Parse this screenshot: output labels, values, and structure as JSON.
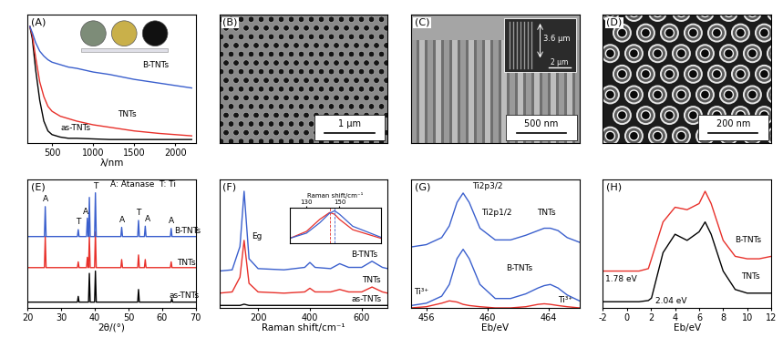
{
  "chart_data": [
    {
      "type": "line",
      "panel": "(A)",
      "xlabel": "λ/nm",
      "xlim": [
        200,
        2250
      ],
      "xticks": [
        500,
        1000,
        1500,
        2000
      ],
      "ylim": [
        0,
        1.05
      ],
      "tick_labels": "x",
      "x": [
        230,
        260,
        300,
        350,
        400,
        450,
        500,
        600,
        700,
        800,
        1000,
        1200,
        1500,
        1800,
        2000,
        2200
      ],
      "series": [
        {
          "color": "#000000",
          "values": [
            0.95,
            0.85,
            0.6,
            0.35,
            0.18,
            0.1,
            0.07,
            0.05,
            0.04,
            0.04,
            0.035,
            0.03,
            0.03,
            0.03,
            0.03,
            0.03
          ]
        },
        {
          "color": "#e8302a",
          "values": [
            0.95,
            0.88,
            0.7,
            0.5,
            0.38,
            0.3,
            0.26,
            0.22,
            0.2,
            0.18,
            0.15,
            0.13,
            0.1,
            0.08,
            0.07,
            0.06
          ]
        },
        {
          "color": "#3a5fcd",
          "values": [
            0.95,
            0.9,
            0.82,
            0.75,
            0.71,
            0.68,
            0.66,
            0.64,
            0.62,
            0.61,
            0.58,
            0.56,
            0.52,
            0.49,
            0.47,
            0.45
          ]
        }
      ],
      "annotations": [
        {
          "text": "as-TNTs",
          "x": 600,
          "y": 0.09
        },
        {
          "text": "TNTs",
          "x": 1300,
          "y": 0.2
        },
        {
          "text": "B-TNTs",
          "x": 1600,
          "y": 0.6
        }
      ]
    },
    {
      "type": "image",
      "panel": "(B)",
      "scale_bar": "1 μm"
    },
    {
      "type": "image",
      "panel": "(C)",
      "scale_bar": "500 nm",
      "inset_annotation": "3.6 μm",
      "inset_scale_bar": "2 μm"
    },
    {
      "type": "image",
      "panel": "(D)",
      "scale_bar": "200 nm"
    },
    {
      "type": "line",
      "panel": "(E)",
      "xlabel": "2θ/(°)",
      "xlim": [
        20,
        70
      ],
      "xticks": [
        20,
        30,
        40,
        50,
        60,
        70
      ],
      "ylim": [
        0,
        1.12
      ],
      "tick_labels": "x",
      "series": [
        {
          "color": "#000000",
          "baseline": 0.05,
          "peak_x": [
            35.1,
            38.4,
            40.2,
            53.0,
            62.9
          ],
          "peak_values": [
            0.1,
            0.3,
            0.32,
            0.16,
            0.08
          ]
        },
        {
          "color": "#e8302a",
          "baseline": 0.35,
          "peak_x": [
            25.3,
            35.1,
            37.8,
            38.4,
            40.2,
            48.0,
            53.0,
            55.0,
            62.7
          ],
          "peak_values": [
            0.62,
            0.4,
            0.44,
            0.62,
            0.66,
            0.42,
            0.46,
            0.42,
            0.4
          ]
        },
        {
          "color": "#3a5fcd",
          "baseline": 0.62,
          "peak_x": [
            25.3,
            35.1,
            37.8,
            38.4,
            40.2,
            48.0,
            53.0,
            55.0,
            62.7
          ],
          "peak_values": [
            0.88,
            0.68,
            0.78,
            0.96,
            1.0,
            0.7,
            0.76,
            0.71,
            0.69
          ]
        }
      ],
      "annotations": [
        {
          "text": "A: Atanase  T: Ti",
          "x": 44.5,
          "y": 1.04
        },
        {
          "text": "A",
          "x": 24.5,
          "y": 0.91
        },
        {
          "text": "T",
          "x": 34.3,
          "y": 0.71
        },
        {
          "text": "A",
          "x": 36.5,
          "y": 0.8
        },
        {
          "text": "T",
          "x": 39.6,
          "y": 1.02
        },
        {
          "text": "A",
          "x": 47.2,
          "y": 0.73
        },
        {
          "text": "T",
          "x": 52.2,
          "y": 0.79
        },
        {
          "text": "A",
          "x": 55.0,
          "y": 0.74
        },
        {
          "text": "A",
          "x": 61.9,
          "y": 0.72
        },
        {
          "text": "B-TNTs",
          "x": 63.5,
          "y": 0.63
        },
        {
          "text": "TNTs",
          "x": 64.5,
          "y": 0.36
        },
        {
          "text": "as-TNTs",
          "x": 62.0,
          "y": 0.07
        }
      ]
    },
    {
      "type": "line",
      "panel": "(F)",
      "xlabel": "Raman shift/cm⁻¹",
      "xlim": [
        50,
        700
      ],
      "xticks": [
        200,
        400,
        600
      ],
      "ylim": [
        0,
        1.05
      ],
      "tick_labels": "x",
      "x": [
        50,
        100,
        130,
        146,
        165,
        200,
        300,
        380,
        400,
        420,
        480,
        515,
        550,
        600,
        640,
        680,
        700
      ],
      "series": [
        {
          "color": "#000000",
          "values": [
            0.02,
            0.02,
            0.02,
            0.03,
            0.02,
            0.02,
            0.02,
            0.02,
            0.02,
            0.02,
            0.02,
            0.02,
            0.02,
            0.02,
            0.02,
            0.02,
            0.02
          ]
        },
        {
          "color": "#e8302a",
          "values": [
            0.12,
            0.13,
            0.25,
            0.55,
            0.2,
            0.13,
            0.12,
            0.13,
            0.16,
            0.13,
            0.13,
            0.15,
            0.13,
            0.13,
            0.17,
            0.13,
            0.12
          ]
        },
        {
          "color": "#3a5fcd",
          "values": [
            0.3,
            0.31,
            0.5,
            0.95,
            0.4,
            0.32,
            0.31,
            0.33,
            0.37,
            0.33,
            0.32,
            0.36,
            0.33,
            0.33,
            0.38,
            0.33,
            0.32
          ]
        }
      ],
      "annotations": [
        {
          "text": "Eg",
          "x": 175,
          "y": 0.55
        },
        {
          "text": "B-TNTs",
          "x": 560,
          "y": 0.4
        },
        {
          "text": "TNTs",
          "x": 600,
          "y": 0.19
        },
        {
          "text": "as-TNTs",
          "x": 560,
          "y": 0.04
        }
      ],
      "inset": {
        "xlabel": "Raman shift/cm⁻¹",
        "xlim": [
          120,
          175
        ],
        "xticks": [
          130,
          150
        ],
        "ylim": [
          0,
          1.05
        ],
        "x": [
          120,
          130,
          138,
          144,
          147,
          150,
          158,
          175
        ],
        "series": [
          {
            "color": "#e8302a",
            "values": [
              0.15,
              0.35,
              0.7,
              0.9,
              0.85,
              0.7,
              0.4,
              0.15
            ]
          },
          {
            "color": "#3a5fcd",
            "values": [
              0.15,
              0.3,
              0.6,
              0.88,
              0.95,
              0.85,
              0.5,
              0.18
            ]
          }
        ]
      }
    },
    {
      "type": "line",
      "panel": "(G)",
      "xlabel": "Eb/eV",
      "xlim": [
        455,
        466
      ],
      "xticks": [
        456,
        460,
        464
      ],
      "ylim": [
        0,
        1.1
      ],
      "tick_labels": "x",
      "x": [
        455,
        456,
        457,
        457.5,
        458,
        458.4,
        458.8,
        459.5,
        460.5,
        461.5,
        462.5,
        463.3,
        463.7,
        464.1,
        464.6,
        465.2,
        466
      ],
      "series": [
        {
          "color": "#3a5fcd",
          "values": [
            0.52,
            0.54,
            0.6,
            0.7,
            0.9,
            0.98,
            0.9,
            0.68,
            0.58,
            0.58,
            0.62,
            0.66,
            0.68,
            0.68,
            0.66,
            0.6,
            0.56
          ]
        },
        {
          "color": "#3a5fcd",
          "values": [
            0.02,
            0.04,
            0.1,
            0.2,
            0.42,
            0.5,
            0.42,
            0.2,
            0.08,
            0.08,
            0.12,
            0.17,
            0.19,
            0.2,
            0.17,
            0.11,
            0.06
          ]
        },
        {
          "color": "#e8302a",
          "values": [
            0.0,
            0.01,
            0.04,
            0.06,
            0.05,
            0.03,
            0.02,
            0.01,
            0.0,
            0.0,
            0.01,
            0.03,
            0.035,
            0.03,
            0.02,
            0.01,
            0.0
          ]
        }
      ],
      "annotations": [
        {
          "text": "Ti2p3/2",
          "x": 459.0,
          "y": 1.0
        },
        {
          "text": "Ti2p1/2",
          "x": 459.6,
          "y": 0.78
        },
        {
          "text": "TNTs",
          "x": 463.2,
          "y": 0.78
        },
        {
          "text": "B-TNTs",
          "x": 461.2,
          "y": 0.3
        },
        {
          "text": "Ti³⁺",
          "x": 455.2,
          "y": 0.1
        },
        {
          "text": "Ti³⁺",
          "x": 464.6,
          "y": 0.03
        }
      ]
    },
    {
      "type": "line",
      "panel": "(H)",
      "xlabel": "Eb/eV",
      "xlim": [
        -2,
        12
      ],
      "xticks": [
        -2,
        0,
        2,
        4,
        6,
        8,
        10,
        12
      ],
      "ylim": [
        0,
        1.05
      ],
      "tick_labels": "x",
      "x": [
        -2,
        0,
        1,
        1.78,
        2.04,
        3,
        4,
        5,
        6,
        6.5,
        7,
        8,
        9,
        10,
        11,
        12
      ],
      "series": [
        {
          "color": "#000000",
          "values": [
            0.05,
            0.05,
            0.05,
            0.06,
            0.08,
            0.45,
            0.6,
            0.55,
            0.62,
            0.7,
            0.6,
            0.3,
            0.15,
            0.12,
            0.12,
            0.12
          ]
        },
        {
          "color": "#e8302a",
          "values": [
            0.3,
            0.3,
            0.3,
            0.32,
            0.4,
            0.7,
            0.82,
            0.8,
            0.85,
            0.95,
            0.85,
            0.55,
            0.42,
            0.4,
            0.4,
            0.42
          ]
        }
      ],
      "annotations": [
        {
          "text": "B-TNTs",
          "x": 9.0,
          "y": 0.52
        },
        {
          "text": "TNTs",
          "x": 9.5,
          "y": 0.22
        },
        {
          "text": "1.78 eV",
          "x": -1.8,
          "y": 0.2
        },
        {
          "text": "2.04 eV",
          "x": 2.4,
          "y": 0.02
        }
      ]
    }
  ]
}
